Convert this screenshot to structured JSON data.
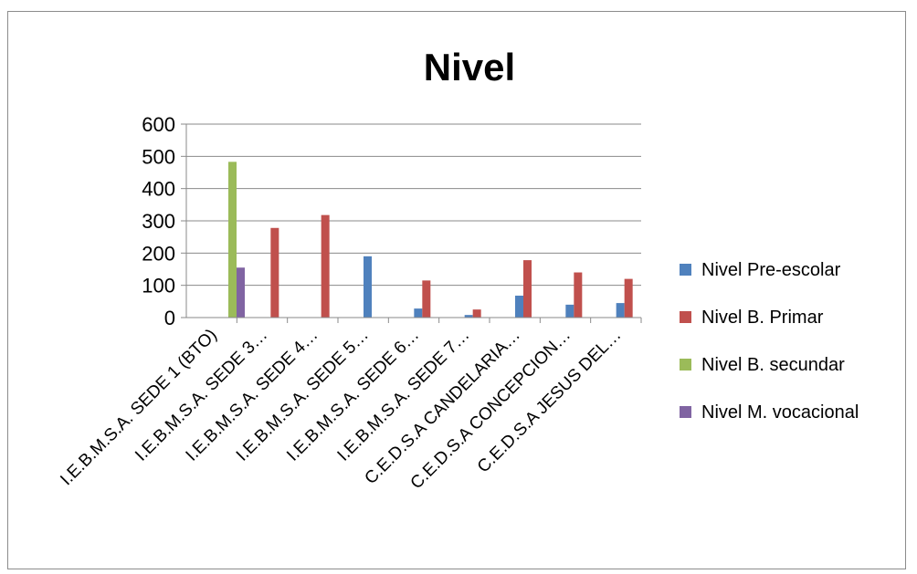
{
  "chart_data": {
    "type": "bar",
    "title": "Nivel",
    "xlabel": "",
    "ylabel": "",
    "ylim": [
      0,
      600
    ],
    "yticks": [
      "0",
      "100",
      "200",
      "300",
      "400",
      "500",
      "600"
    ],
    "grid": true,
    "legend_position": "right",
    "categories": [
      "I.E.B.M.S.A. SEDE 1 (BTO)",
      "I.E.B.M.S.A. SEDE 3…",
      "I.E.B.M.S.A. SEDE 4…",
      "I.E.B.M.S.A. SEDE 5…",
      "I.E.B.M.S.A. SEDE  6…",
      "I.E.B.M.S.A. SEDE  7…",
      "C.E.D.S.A CANDELARIA…",
      "C.E.D.S.A CONCEPCION…",
      "C.E.D.S.A JESUS DEL…"
    ],
    "series": [
      {
        "name": "Nivel Pre-escolar",
        "color": "#4f81bd",
        "values": [
          0,
          0,
          0,
          190,
          28,
          8,
          68,
          40,
          45
        ]
      },
      {
        "name": "Nivel B. Primar",
        "color": "#c0504d",
        "values": [
          0,
          278,
          318,
          0,
          115,
          25,
          178,
          140,
          120
        ]
      },
      {
        "name": "Nivel B. secundar",
        "color": "#9bbb59",
        "values": [
          483,
          0,
          0,
          0,
          0,
          0,
          0,
          0,
          0
        ]
      },
      {
        "name": "Nivel M. vocacional",
        "color": "#8064a2",
        "values": [
          155,
          0,
          0,
          0,
          0,
          0,
          0,
          0,
          0
        ]
      }
    ]
  }
}
